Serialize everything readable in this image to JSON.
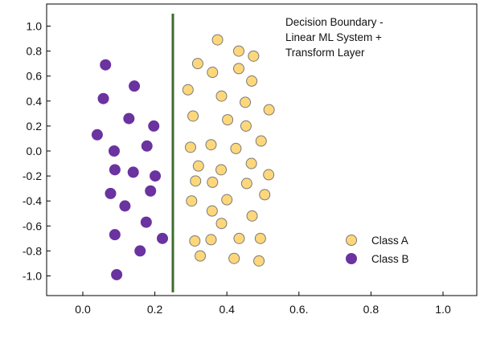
{
  "chart_data": {
    "type": "scatter",
    "title_lines": [
      "Decision Boundary -",
      "Linear ML System +",
      "Transform Layer"
    ],
    "xlabel": "",
    "ylabel": "",
    "xlim": [
      -0.1,
      1.1
    ],
    "ylim": [
      -1.1,
      1.1
    ],
    "x_ticks": [
      0.0,
      0.2,
      0.4,
      0.6,
      0.8,
      1.0
    ],
    "x_tick_labels": [
      "0.0",
      "0.2",
      "0.4",
      "0.6.",
      "0.8",
      "1.0"
    ],
    "y_ticks": [
      1.0,
      0.8,
      0.6,
      0.4,
      0.2,
      0.0,
      -0.2,
      -0.4,
      -0.6,
      -0.8,
      -1.0
    ],
    "y_tick_labels": [
      "1.0",
      "0.8",
      "0.6",
      "0.4",
      "0.2",
      "0.0",
      "-0.2",
      "-0.4",
      "-0.6",
      "-0.8",
      "-1.0"
    ],
    "grid": false,
    "legend_position": "bottom-right",
    "boundary": {
      "x": 0.25,
      "color": "#3f6b2f"
    },
    "series": [
      {
        "name": "Class A",
        "color": "#fdd77a",
        "stroke": "#7a7a7a",
        "points": [
          [
            0.374,
            0.89
          ],
          [
            0.433,
            0.8
          ],
          [
            0.474,
            0.76
          ],
          [
            0.319,
            0.7
          ],
          [
            0.433,
            0.66
          ],
          [
            0.36,
            0.63
          ],
          [
            0.469,
            0.56
          ],
          [
            0.292,
            0.49
          ],
          [
            0.385,
            0.44
          ],
          [
            0.451,
            0.39
          ],
          [
            0.517,
            0.33
          ],
          [
            0.306,
            0.28
          ],
          [
            0.402,
            0.25
          ],
          [
            0.453,
            0.2
          ],
          [
            0.495,
            0.08
          ],
          [
            0.356,
            0.05
          ],
          [
            0.299,
            0.03
          ],
          [
            0.425,
            0.02
          ],
          [
            0.468,
            -0.1
          ],
          [
            0.321,
            -0.12
          ],
          [
            0.384,
            -0.15
          ],
          [
            0.516,
            -0.19
          ],
          [
            0.313,
            -0.24
          ],
          [
            0.36,
            -0.25
          ],
          [
            0.455,
            -0.26
          ],
          [
            0.505,
            -0.35
          ],
          [
            0.4,
            -0.39
          ],
          [
            0.302,
            -0.4
          ],
          [
            0.359,
            -0.48
          ],
          [
            0.47,
            -0.52
          ],
          [
            0.385,
            -0.58
          ],
          [
            0.434,
            -0.7
          ],
          [
            0.493,
            -0.7
          ],
          [
            0.356,
            -0.71
          ],
          [
            0.311,
            -0.72
          ],
          [
            0.326,
            -0.84
          ],
          [
            0.42,
            -0.86
          ],
          [
            0.489,
            -0.88
          ]
        ]
      },
      {
        "name": "Class B",
        "color": "#6a33a0",
        "stroke": "#6a33a0",
        "points": [
          [
            0.063,
            0.69
          ],
          [
            0.143,
            0.52
          ],
          [
            0.057,
            0.42
          ],
          [
            0.128,
            0.26
          ],
          [
            0.197,
            0.2
          ],
          [
            0.04,
            0.13
          ],
          [
            0.178,
            0.04
          ],
          [
            0.087,
            0.0
          ],
          [
            0.089,
            -0.15
          ],
          [
            0.14,
            -0.17
          ],
          [
            0.201,
            -0.2
          ],
          [
            0.077,
            -0.34
          ],
          [
            0.188,
            -0.32
          ],
          [
            0.117,
            -0.44
          ],
          [
            0.176,
            -0.57
          ],
          [
            0.089,
            -0.67
          ],
          [
            0.221,
            -0.7
          ],
          [
            0.159,
            -0.8
          ],
          [
            0.094,
            -0.99
          ]
        ]
      }
    ]
  }
}
